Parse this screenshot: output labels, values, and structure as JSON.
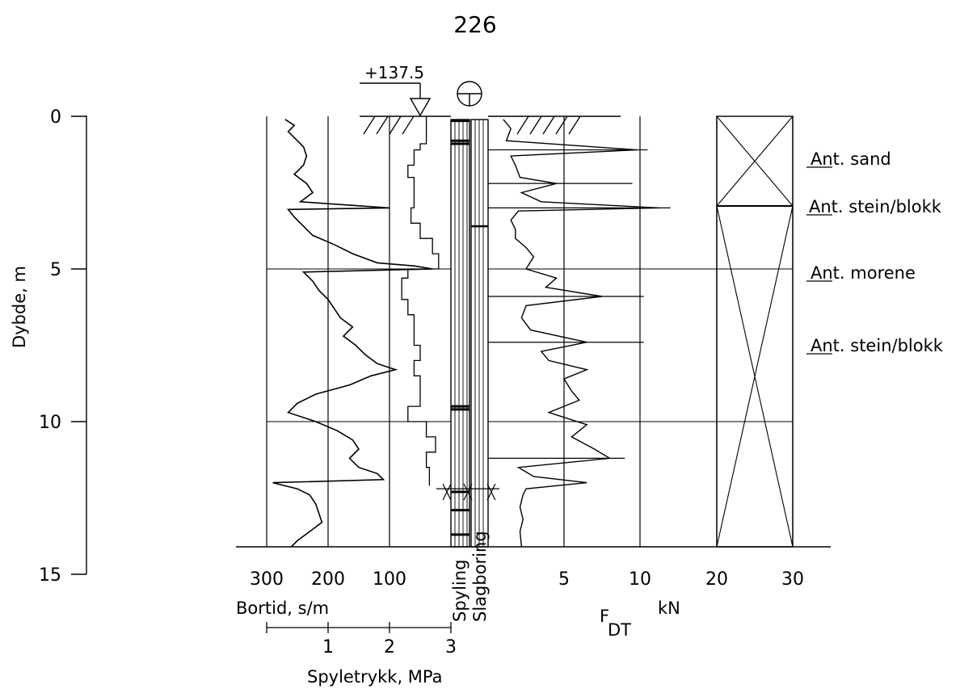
{
  "figure_number": "226",
  "elevation_label": "+137.5",
  "chart_data": {
    "type": "line",
    "title": "226",
    "depth_axis": {
      "label": "Dybde, m",
      "range": [
        0,
        15
      ],
      "ticks": [
        "0",
        "5",
        "10",
        "15"
      ],
      "inverted": true
    },
    "bortid_axis": {
      "label": "Bortid, s/m",
      "range": [
        300,
        0
      ],
      "ticks": [
        "300",
        "200",
        "100"
      ]
    },
    "spyletrykk_axis": {
      "label": "Spyletrykk, MPa",
      "range": [
        0,
        3
      ],
      "ticks": [
        "1",
        "2",
        "3"
      ]
    },
    "force_axis": {
      "label_main": "F",
      "label_sub": "DT",
      "unit": "kN",
      "range": [
        0,
        30
      ],
      "ticks": [
        "5",
        "10",
        "20",
        "30"
      ],
      "scale_note": "0-10 linear, 10-30 compressed"
    },
    "column_labels": {
      "flushing": "Spyling",
      "hammering": "Slagboring"
    },
    "grid": true,
    "bortid_profile": [
      [
        0.1,
        270
      ],
      [
        0.3,
        255
      ],
      [
        0.5,
        265
      ],
      [
        0.8,
        250
      ],
      [
        1.0,
        240
      ],
      [
        1.3,
        235
      ],
      [
        1.6,
        240
      ],
      [
        1.9,
        255
      ],
      [
        2.2,
        235
      ],
      [
        2.5,
        225
      ],
      [
        2.8,
        245
      ],
      [
        3.0,
        100
      ],
      [
        3.05,
        265
      ],
      [
        3.3,
        255
      ],
      [
        3.6,
        240
      ],
      [
        3.9,
        225
      ],
      [
        4.2,
        190
      ],
      [
        4.5,
        160
      ],
      [
        4.8,
        120
      ],
      [
        4.9,
        60
      ],
      [
        5.0,
        30
      ],
      [
        5.1,
        240
      ],
      [
        5.4,
        225
      ],
      [
        5.7,
        215
      ],
      [
        6.0,
        200
      ],
      [
        6.3,
        190
      ],
      [
        6.6,
        180
      ],
      [
        6.9,
        160
      ],
      [
        7.2,
        175
      ],
      [
        7.5,
        155
      ],
      [
        7.8,
        140
      ],
      [
        8.1,
        120
      ],
      [
        8.3,
        90
      ],
      [
        8.5,
        130
      ],
      [
        8.8,
        165
      ],
      [
        9.1,
        220
      ],
      [
        9.4,
        250
      ],
      [
        9.7,
        265
      ],
      [
        10.0,
        220
      ],
      [
        10.3,
        185
      ],
      [
        10.6,
        160
      ],
      [
        10.9,
        150
      ],
      [
        11.2,
        165
      ],
      [
        11.5,
        150
      ],
      [
        11.7,
        120
      ],
      [
        11.9,
        110
      ],
      [
        12.0,
        290
      ],
      [
        12.2,
        250
      ],
      [
        12.4,
        230
      ],
      [
        12.7,
        220
      ],
      [
        13.0,
        215
      ],
      [
        13.3,
        210
      ],
      [
        13.6,
        230
      ],
      [
        13.9,
        250
      ],
      [
        14.1,
        260
      ]
    ],
    "spyletrykk_profile": [
      [
        0.0,
        2.6
      ],
      [
        0.9,
        2.6
      ],
      [
        1.1,
        2.5
      ],
      [
        1.6,
        2.4
      ],
      [
        2.0,
        2.3
      ],
      [
        2.5,
        2.4
      ],
      [
        3.0,
        2.4
      ],
      [
        3.5,
        2.35
      ],
      [
        4.0,
        2.5
      ],
      [
        4.5,
        2.7
      ],
      [
        5.0,
        2.8
      ],
      [
        5.3,
        2.3
      ],
      [
        6.0,
        2.2
      ],
      [
        6.5,
        2.3
      ],
      [
        7.0,
        2.4
      ],
      [
        7.5,
        2.4
      ],
      [
        8.0,
        2.5
      ],
      [
        8.5,
        2.4
      ],
      [
        9.0,
        2.5
      ],
      [
        9.5,
        2.5
      ],
      [
        10.0,
        2.3
      ],
      [
        10.5,
        2.6
      ],
      [
        11.0,
        2.75
      ],
      [
        11.5,
        2.6
      ],
      [
        11.9,
        2.65
      ],
      [
        12.1,
        2.65
      ]
    ],
    "force_profile": [
      [
        0.1,
        1.0
      ],
      [
        0.4,
        1.5
      ],
      [
        0.8,
        1.2
      ],
      [
        1.1,
        9.8
      ],
      [
        1.3,
        1.5
      ],
      [
        1.6,
        1.8
      ],
      [
        2.0,
        2.1
      ],
      [
        2.2,
        4.5
      ],
      [
        2.5,
        2.2
      ],
      [
        2.8,
        3.5
      ],
      [
        3.0,
        12.5
      ],
      [
        3.1,
        2.0
      ],
      [
        3.4,
        1.5
      ],
      [
        3.7,
        1.8
      ],
      [
        4.0,
        1.8
      ],
      [
        4.3,
        2.5
      ],
      [
        4.6,
        3.0
      ],
      [
        5.0,
        2.5
      ],
      [
        5.3,
        4.5
      ],
      [
        5.6,
        3.8
      ],
      [
        5.9,
        7.5
      ],
      [
        6.2,
        2.5
      ],
      [
        6.6,
        2.2
      ],
      [
        7.0,
        2.8
      ],
      [
        7.4,
        6.5
      ],
      [
        7.7,
        3.5
      ],
      [
        8.0,
        4.0
      ],
      [
        8.3,
        6.5
      ],
      [
        8.6,
        5.0
      ],
      [
        9.0,
        5.5
      ],
      [
        9.3,
        6.0
      ],
      [
        9.7,
        4.0
      ],
      [
        10.1,
        6.5
      ],
      [
        10.5,
        5.5
      ],
      [
        10.9,
        7.0
      ],
      [
        11.2,
        8.0
      ],
      [
        11.5,
        2.0
      ],
      [
        11.8,
        3.0
      ],
      [
        12.0,
        6.5
      ],
      [
        12.2,
        2.5
      ],
      [
        12.4,
        2.3
      ],
      [
        12.8,
        2.1
      ],
      [
        13.2,
        2.3
      ],
      [
        13.6,
        2.1
      ],
      [
        14.1,
        2.2
      ]
    ],
    "force_reference_lines": [
      [
        1.1,
        11.0
      ],
      [
        2.2,
        9.5
      ],
      [
        3.0,
        14.0
      ],
      [
        5.9,
        10.5
      ],
      [
        7.4,
        10.5
      ],
      [
        11.2,
        9.0
      ]
    ],
    "interpretation": [
      {
        "depth": 1.5,
        "text": "Ant. sand"
      },
      {
        "depth": 3.0,
        "text": "Ant. stein/blokk"
      },
      {
        "depth": 5.0,
        "text": "Ant. morene"
      },
      {
        "depth": 7.5,
        "text": "Ant. stein/blokk"
      }
    ],
    "stop_depth": 12.2
  },
  "colors": {
    "ink": "#000000",
    "paper": "#ffffff"
  }
}
